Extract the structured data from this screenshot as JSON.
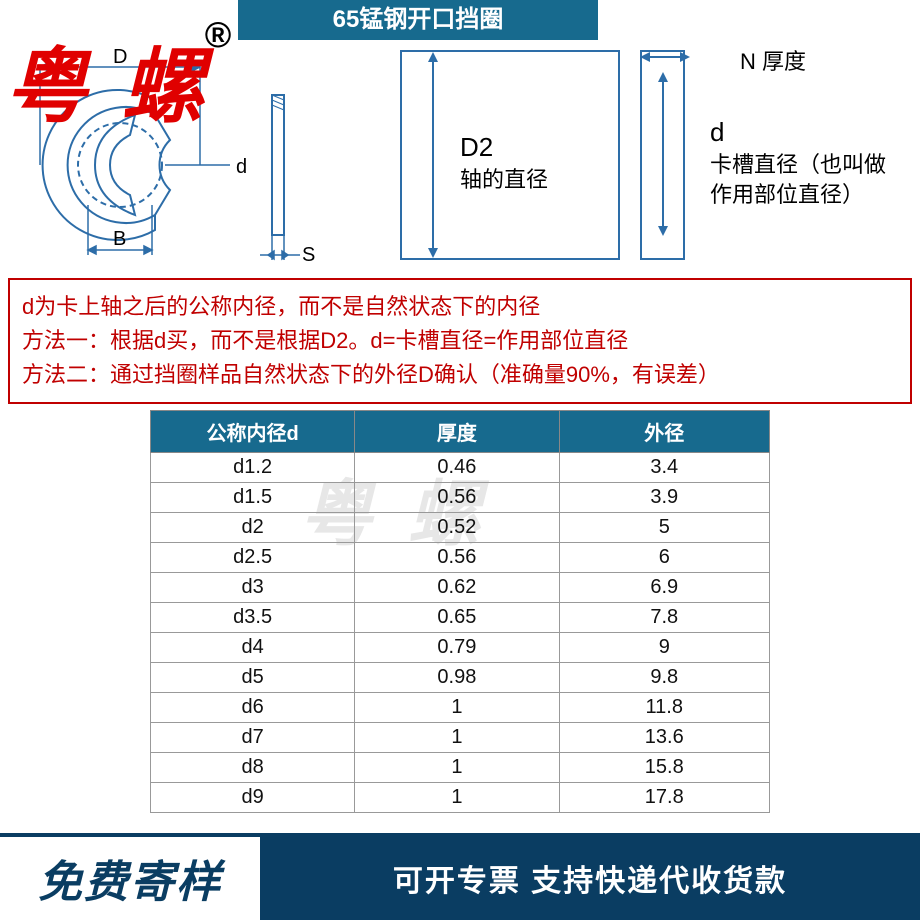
{
  "title": "65锰钢开口挡圈",
  "brand": "粤 螺",
  "brand_superscript": "®",
  "colors": {
    "header_bg": "#176a8e",
    "brand_red": "#e00000",
    "diagram_blue": "#2d6da8",
    "redbox_border": "#c00000",
    "footer_dark": "#0a3d62",
    "watermark": "#d5d5d5"
  },
  "diagram_left": {
    "label_D": "D",
    "label_d": "d",
    "label_B": "B",
    "label_S": "S"
  },
  "diagram_right": {
    "label_D2": "D2",
    "label_D2_sub": "轴的直径",
    "label_N": "N 厚度",
    "label_d": "d",
    "label_d_desc": "卡槽直径（也叫做作用部位直径）"
  },
  "redbox": {
    "line1": "d为卡上轴之后的公称内径，而不是自然状态下的内径",
    "line2": "方法一：根据d买，而不是根据D2。d=卡槽直径=作用部位直径",
    "line3": "方法二：通过挡圈样品自然状态下的外径D确认（准确量90%，有误差）"
  },
  "table": {
    "headers": [
      "公称内径d",
      "厚度",
      "外径"
    ],
    "rows": [
      [
        "d1.2",
        "0.46",
        "3.4"
      ],
      [
        "d1.5",
        "0.56",
        "3.9"
      ],
      [
        "d2",
        "0.52",
        "5"
      ],
      [
        "d2.5",
        "0.56",
        "6"
      ],
      [
        "d3",
        "0.62",
        "6.9"
      ],
      [
        "d3.5",
        "0.65",
        "7.8"
      ],
      [
        "d4",
        "0.79",
        "9"
      ],
      [
        "d5",
        "0.98",
        "9.8"
      ],
      [
        "d6",
        "1",
        "11.8"
      ],
      [
        "d7",
        "1",
        "13.6"
      ],
      [
        "d8",
        "1",
        "15.8"
      ],
      [
        "d9",
        "1",
        "17.8"
      ]
    ]
  },
  "watermark_text": "粤 螺",
  "footer": {
    "left": "免费寄样",
    "right": "可开专票 支持快递代收货款"
  }
}
